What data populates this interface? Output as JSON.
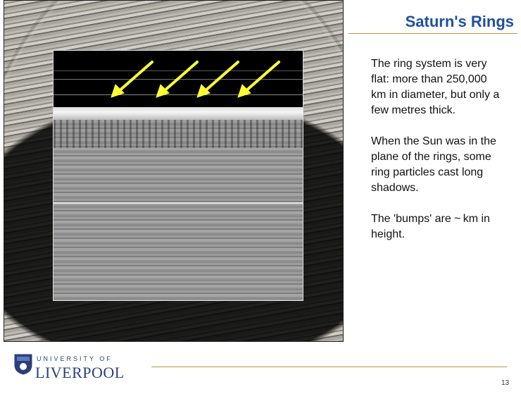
{
  "slide": {
    "title": "Saturn's Rings",
    "paragraphs": [
      "The ring system is very flat: more than 250,000 km in diameter, but only a few metres thick.",
      "When the Sun was in the plane of the rings, some ring particles cast long shadows.",
      "The 'bumps' are ~ km in height."
    ],
    "logo": {
      "line1": "UNIVERSITY OF",
      "line2": "LIVERPOOL"
    },
    "page_number": "13"
  }
}
